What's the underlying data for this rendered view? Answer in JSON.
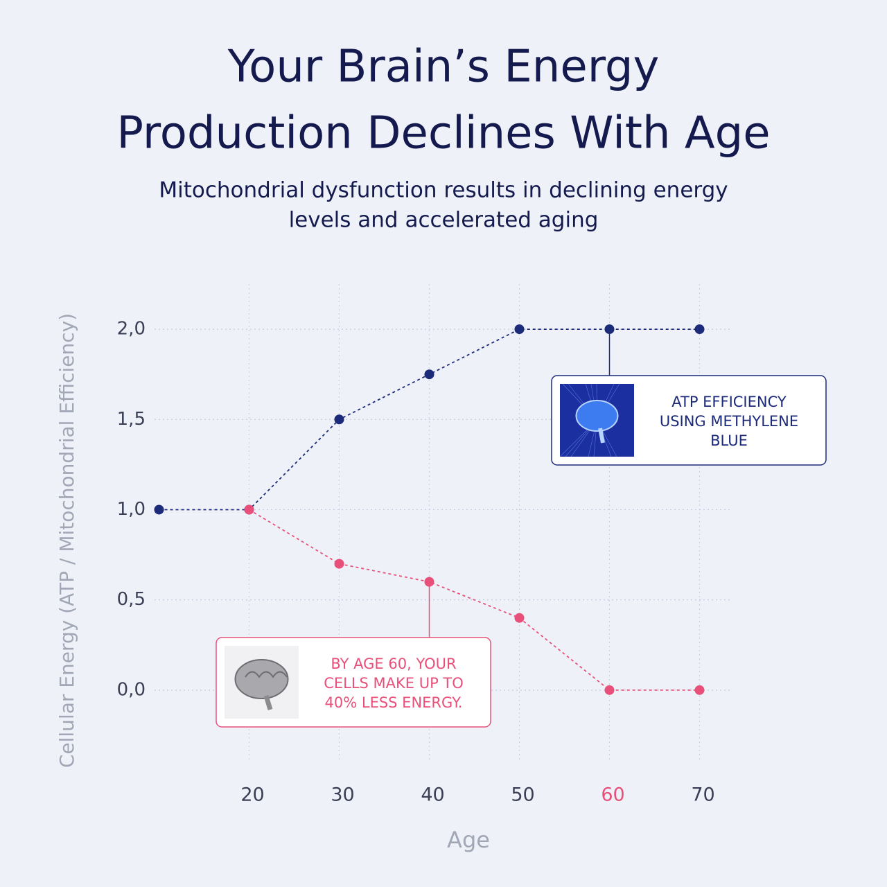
{
  "chart_data": {
    "type": "line",
    "title": [
      "Your Brain’s Energy",
      "Production Declines With Age"
    ],
    "subtitle": [
      "Mitochondrial dysfunction results in declining energy",
      "levels and accelerated aging"
    ],
    "x_label": "Age",
    "y_label": "Cellular Energy (ATP / Mitochondrial Efficiency)",
    "x": [
      10,
      20,
      30,
      40,
      50,
      60,
      70
    ],
    "series": [
      {
        "color": "#1c2a7a",
        "values": [
          1.0,
          1.0,
          1.5,
          1.75,
          2.0,
          2.0,
          2.0
        ]
      },
      {
        "color": "#e8507a",
        "values": [
          null,
          1.0,
          0.7,
          0.6,
          0.4,
          0.0,
          0.0
        ]
      }
    ],
    "xlim": [
      9.5,
      73.5
    ],
    "ylim": [
      -0.4,
      2.25
    ],
    "xticks": [
      20,
      30,
      40,
      50,
      60,
      70
    ],
    "yticks": [
      {
        "value": 0,
        "label": "0,0"
      },
      {
        "value": 0.5,
        "label": "0,5"
      },
      {
        "value": 1,
        "label": "1,0"
      },
      {
        "value": 1.5,
        "label": "1,5"
      },
      {
        "value": 2,
        "label": "2,0"
      }
    ],
    "xtick_highlight": {
      "value": 60,
      "color": "#e8507a"
    },
    "grid": true,
    "annotations": [
      {
        "lines": [
          "ATP EFFICIENCY",
          "USING METHYLENE",
          "BLUE"
        ],
        "color": "#1c2a7a"
      },
      {
        "lines": [
          "BY AGE 60, YOUR",
          "CELLS MAKE UP TO",
          "40% LESS ENERGY."
        ],
        "color": "#e8507a"
      }
    ]
  }
}
